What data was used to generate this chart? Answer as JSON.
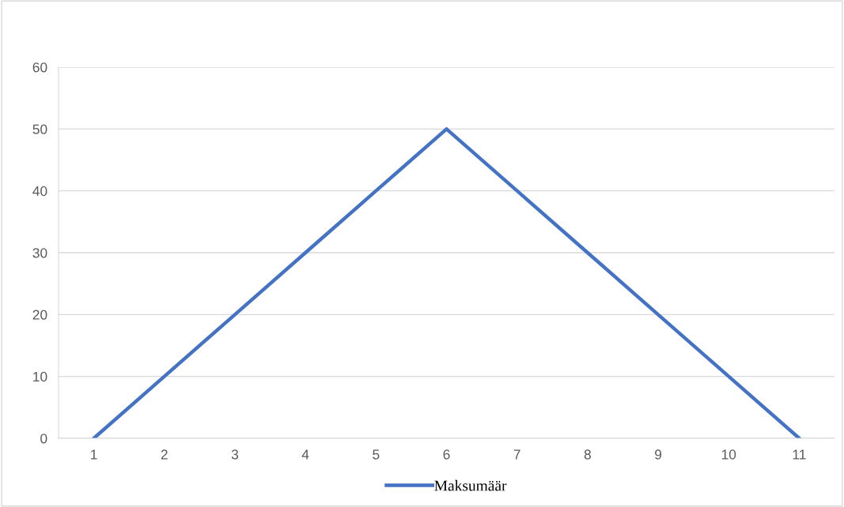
{
  "chart_data": {
    "type": "line",
    "categories": [
      "1",
      "2",
      "3",
      "4",
      "5",
      "6",
      "7",
      "8",
      "9",
      "10",
      "11"
    ],
    "series": [
      {
        "name": "Maksumäär",
        "color": "#4472c4",
        "values": [
          0,
          10,
          20,
          30,
          40,
          50,
          40,
          30,
          20,
          10,
          0
        ]
      }
    ],
    "ylim": [
      0,
      60
    ],
    "yticks": [
      0,
      10,
      20,
      30,
      40,
      50,
      60
    ],
    "grid": "y",
    "legend": "bottom",
    "marker": "none",
    "line_style": "solid"
  }
}
